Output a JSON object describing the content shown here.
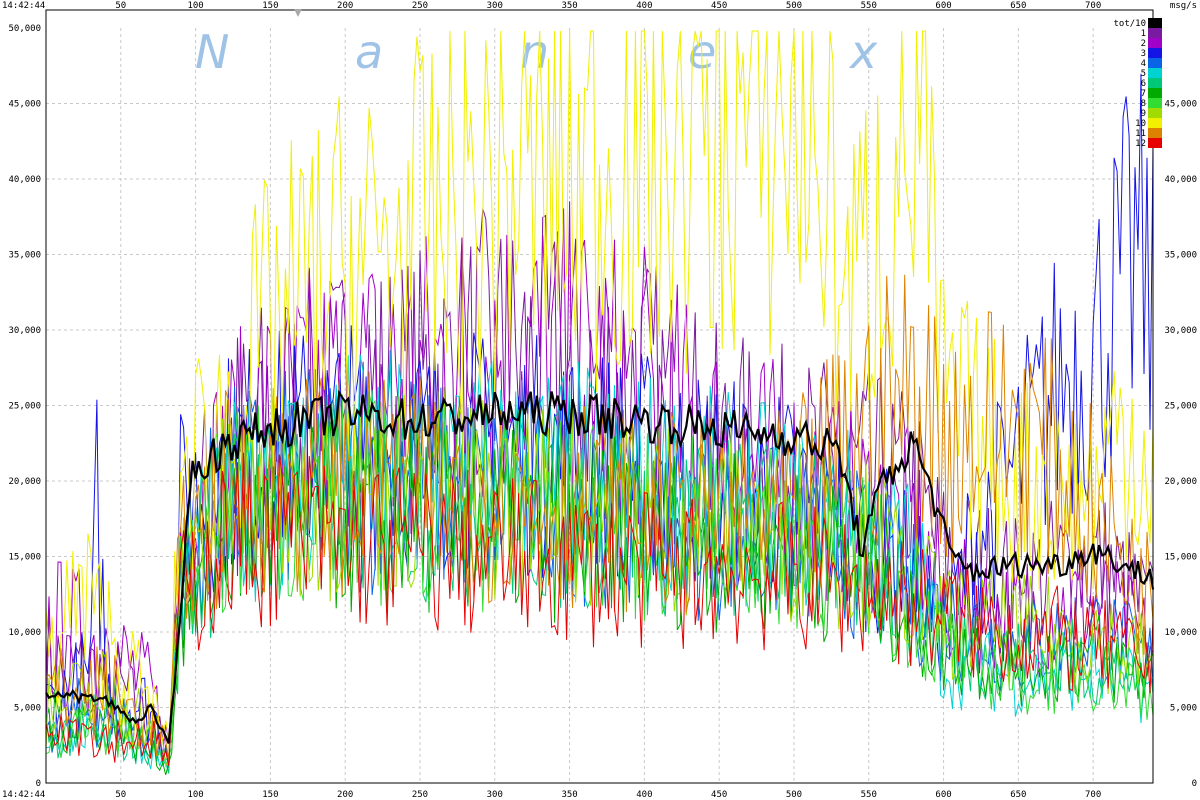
{
  "chart_data": {
    "type": "line",
    "title": "",
    "watermark": [
      "N",
      "a",
      "n",
      "e",
      "x"
    ],
    "time_label": "14:42:44",
    "unit_label": "msg/s",
    "x_ticks": [
      50,
      100,
      150,
      200,
      250,
      300,
      350,
      400,
      450,
      500,
      550,
      600,
      650,
      700
    ],
    "xlim": [
      0,
      740
    ],
    "ylim": [
      0,
      50000
    ],
    "y_ticks": [
      0,
      5000,
      10000,
      15000,
      20000,
      25000,
      30000,
      35000,
      40000,
      45000,
      50000
    ],
    "y_tick_labels": [
      "0",
      "5,000",
      "10,000",
      "15,000",
      "20,000",
      "25,000",
      "30,000",
      "35,000",
      "40,000",
      "45,000",
      "50,000"
    ],
    "grid": true,
    "legend_position": "top-right",
    "series": [
      {
        "name": "tot/10",
        "color": "#000000",
        "width": 2.2,
        "points": [
          [
            0,
            6000
          ],
          [
            40,
            5500
          ],
          [
            60,
            4000
          ],
          [
            70,
            5000
          ],
          [
            82,
            2500
          ],
          [
            90,
            11000
          ],
          [
            95,
            20000
          ],
          [
            120,
            22500
          ],
          [
            150,
            23500
          ],
          [
            200,
            24500
          ],
          [
            250,
            24000
          ],
          [
            300,
            24500
          ],
          [
            350,
            24500
          ],
          [
            400,
            24000
          ],
          [
            450,
            23500
          ],
          [
            500,
            23000
          ],
          [
            530,
            22000
          ],
          [
            545,
            15500
          ],
          [
            560,
            20000
          ],
          [
            580,
            22500
          ],
          [
            590,
            20000
          ],
          [
            605,
            15000
          ],
          [
            620,
            14000
          ],
          [
            650,
            14500
          ],
          [
            680,
            14500
          ],
          [
            700,
            15500
          ],
          [
            740,
            13500
          ]
        ]
      },
      {
        "name": "1",
        "color": "#7a1aa0",
        "width": 1,
        "points": [
          [
            0,
            8000
          ],
          [
            40,
            7000
          ],
          [
            70,
            4000
          ],
          [
            82,
            2000
          ],
          [
            90,
            15000
          ],
          [
            120,
            22000
          ],
          [
            150,
            24000
          ],
          [
            200,
            25500
          ],
          [
            250,
            26000
          ],
          [
            300,
            28000
          ],
          [
            350,
            27000
          ],
          [
            400,
            26000
          ],
          [
            450,
            22000
          ],
          [
            500,
            21000
          ],
          [
            550,
            20000
          ],
          [
            580,
            19000
          ],
          [
            600,
            15000
          ],
          [
            650,
            13000
          ],
          [
            700,
            15000
          ],
          [
            740,
            11000
          ]
        ]
      },
      {
        "name": "2",
        "color": "#a000c8",
        "width": 1,
        "points": [
          [
            0,
            10000
          ],
          [
            40,
            9000
          ],
          [
            70,
            6000
          ],
          [
            82,
            2500
          ],
          [
            90,
            17000
          ],
          [
            120,
            21000
          ],
          [
            150,
            24000
          ],
          [
            200,
            26000
          ],
          [
            250,
            27000
          ],
          [
            300,
            29000
          ],
          [
            350,
            28000
          ],
          [
            400,
            26000
          ],
          [
            450,
            22000
          ],
          [
            500,
            20000
          ],
          [
            550,
            18000
          ],
          [
            580,
            17000
          ],
          [
            600,
            12000
          ],
          [
            650,
            11000
          ],
          [
            700,
            12000
          ],
          [
            740,
            9000
          ]
        ]
      },
      {
        "name": "3",
        "color": "#1414e6",
        "width": 1,
        "points": [
          [
            0,
            5000
          ],
          [
            30,
            7000
          ],
          [
            35,
            20000
          ],
          [
            40,
            6000
          ],
          [
            70,
            5000
          ],
          [
            82,
            2000
          ],
          [
            90,
            18000
          ],
          [
            120,
            21000
          ],
          [
            150,
            22000
          ],
          [
            200,
            22500
          ],
          [
            250,
            22000
          ],
          [
            300,
            22000
          ],
          [
            350,
            21500
          ],
          [
            400,
            21000
          ],
          [
            450,
            20000
          ],
          [
            500,
            19000
          ],
          [
            550,
            16000
          ],
          [
            580,
            14000
          ],
          [
            600,
            10000
          ],
          [
            620,
            16000
          ],
          [
            650,
            21000
          ],
          [
            680,
            27000
          ],
          [
            700,
            29000
          ],
          [
            720,
            33000
          ],
          [
            730,
            35000
          ],
          [
            740,
            31000
          ]
        ]
      },
      {
        "name": "4",
        "color": "#0a64e6",
        "width": 1,
        "points": [
          [
            0,
            4000
          ],
          [
            40,
            5000
          ],
          [
            70,
            3000
          ],
          [
            82,
            1500
          ],
          [
            90,
            14000
          ],
          [
            120,
            19000
          ],
          [
            150,
            20000
          ],
          [
            200,
            20000
          ],
          [
            250,
            19500
          ],
          [
            300,
            19000
          ],
          [
            350,
            19000
          ],
          [
            400,
            18000
          ],
          [
            450,
            17000
          ],
          [
            500,
            16000
          ],
          [
            550,
            15000
          ],
          [
            600,
            11000
          ],
          [
            650,
            9000
          ],
          [
            700,
            10000
          ],
          [
            740,
            8000
          ]
        ]
      },
      {
        "name": "5",
        "color": "#00d2d2",
        "width": 1,
        "points": [
          [
            0,
            3000
          ],
          [
            40,
            4000
          ],
          [
            70,
            2000
          ],
          [
            82,
            1200
          ],
          [
            90,
            13000
          ],
          [
            120,
            18000
          ],
          [
            150,
            20000
          ],
          [
            200,
            21000
          ],
          [
            250,
            21000
          ],
          [
            300,
            21000
          ],
          [
            350,
            20500
          ],
          [
            400,
            20000
          ],
          [
            450,
            19000
          ],
          [
            500,
            18000
          ],
          [
            550,
            17000
          ],
          [
            580,
            15000
          ],
          [
            600,
            8000
          ],
          [
            650,
            7000
          ],
          [
            700,
            7500
          ],
          [
            740,
            6000
          ]
        ]
      },
      {
        "name": "6",
        "color": "#00c878",
        "width": 1,
        "points": [
          [
            0,
            3500
          ],
          [
            40,
            3000
          ],
          [
            70,
            2500
          ],
          [
            82,
            1000
          ],
          [
            90,
            12000
          ],
          [
            120,
            17000
          ],
          [
            150,
            18500
          ],
          [
            200,
            19000
          ],
          [
            250,
            19000
          ],
          [
            300,
            18500
          ],
          [
            350,
            18000
          ],
          [
            400,
            17500
          ],
          [
            450,
            17000
          ],
          [
            500,
            16500
          ],
          [
            550,
            15000
          ],
          [
            600,
            10000
          ],
          [
            650,
            8000
          ],
          [
            700,
            8000
          ],
          [
            740,
            7000
          ]
        ]
      },
      {
        "name": "7",
        "color": "#00aa00",
        "width": 1,
        "points": [
          [
            0,
            4000
          ],
          [
            40,
            4500
          ],
          [
            70,
            2000
          ],
          [
            82,
            1000
          ],
          [
            90,
            11000
          ],
          [
            120,
            16000
          ],
          [
            150,
            17000
          ],
          [
            200,
            17500
          ],
          [
            250,
            17500
          ],
          [
            300,
            17000
          ],
          [
            350,
            17000
          ],
          [
            400,
            16500
          ],
          [
            450,
            16000
          ],
          [
            500,
            15500
          ],
          [
            550,
            14000
          ],
          [
            600,
            9000
          ],
          [
            650,
            8000
          ],
          [
            700,
            8500
          ],
          [
            740,
            7000
          ]
        ]
      },
      {
        "name": "8",
        "color": "#32dc32",
        "width": 1,
        "points": [
          [
            0,
            3000
          ],
          [
            40,
            4000
          ],
          [
            70,
            3000
          ],
          [
            82,
            1200
          ],
          [
            90,
            13000
          ],
          [
            120,
            18000
          ],
          [
            150,
            19000
          ],
          [
            200,
            19000
          ],
          [
            250,
            18500
          ],
          [
            300,
            18000
          ],
          [
            350,
            18000
          ],
          [
            400,
            17000
          ],
          [
            450,
            16500
          ],
          [
            500,
            16000
          ],
          [
            550,
            15000
          ],
          [
            600,
            9000
          ],
          [
            650,
            7000
          ],
          [
            700,
            7500
          ],
          [
            740,
            6000
          ]
        ]
      },
      {
        "name": "9",
        "color": "#a0dc00",
        "width": 1,
        "points": [
          [
            0,
            5000
          ],
          [
            40,
            6000
          ],
          [
            70,
            4000
          ],
          [
            82,
            1500
          ],
          [
            90,
            14000
          ],
          [
            120,
            18000
          ],
          [
            150,
            19000
          ],
          [
            200,
            19500
          ],
          [
            250,
            19500
          ],
          [
            300,
            19000
          ],
          [
            350,
            18500
          ],
          [
            400,
            18000
          ],
          [
            450,
            17500
          ],
          [
            500,
            17000
          ],
          [
            550,
            16000
          ],
          [
            600,
            11000
          ],
          [
            650,
            10000
          ],
          [
            700,
            10000
          ],
          [
            740,
            8000
          ]
        ]
      },
      {
        "name": "10",
        "color": "#f0f000",
        "width": 1,
        "points": [
          [
            0,
            8000
          ],
          [
            20,
            12000
          ],
          [
            40,
            10000
          ],
          [
            70,
            5000
          ],
          [
            82,
            2500
          ],
          [
            90,
            20000
          ],
          [
            120,
            24000
          ],
          [
            150,
            30000
          ],
          [
            200,
            34000
          ],
          [
            250,
            36000
          ],
          [
            300,
            39000
          ],
          [
            350,
            40000
          ],
          [
            400,
            42000
          ],
          [
            450,
            43000
          ],
          [
            500,
            43500
          ],
          [
            520,
            42000
          ],
          [
            535,
            32000
          ],
          [
            550,
            35000
          ],
          [
            570,
            42000
          ],
          [
            585,
            42000
          ],
          [
            600,
            25000
          ],
          [
            650,
            20000
          ],
          [
            700,
            19000
          ],
          [
            720,
            24000
          ],
          [
            740,
            21000
          ]
        ]
      },
      {
        "name": "11",
        "color": "#dc8200",
        "width": 1,
        "points": [
          [
            0,
            6000
          ],
          [
            40,
            6000
          ],
          [
            70,
            4000
          ],
          [
            82,
            2000
          ],
          [
            90,
            15000
          ],
          [
            120,
            19000
          ],
          [
            150,
            20000
          ],
          [
            200,
            20000
          ],
          [
            250,
            19500
          ],
          [
            300,
            19000
          ],
          [
            350,
            18500
          ],
          [
            400,
            18000
          ],
          [
            450,
            17500
          ],
          [
            500,
            18000
          ],
          [
            540,
            23000
          ],
          [
            580,
            26000
          ],
          [
            600,
            23000
          ],
          [
            650,
            24000
          ],
          [
            700,
            18000
          ],
          [
            740,
            12000
          ]
        ]
      },
      {
        "name": "12",
        "color": "#e60000",
        "width": 1,
        "points": [
          [
            0,
            5000
          ],
          [
            40,
            3000
          ],
          [
            70,
            3000
          ],
          [
            82,
            1500
          ],
          [
            90,
            12000
          ],
          [
            120,
            16000
          ],
          [
            150,
            16500
          ],
          [
            200,
            16000
          ],
          [
            250,
            15500
          ],
          [
            300,
            15000
          ],
          [
            350,
            14500
          ],
          [
            400,
            14000
          ],
          [
            450,
            14000
          ],
          [
            500,
            13500
          ],
          [
            550,
            13000
          ],
          [
            600,
            11000
          ],
          [
            650,
            10000
          ],
          [
            700,
            9000
          ],
          [
            740,
            8000
          ]
        ]
      }
    ]
  }
}
